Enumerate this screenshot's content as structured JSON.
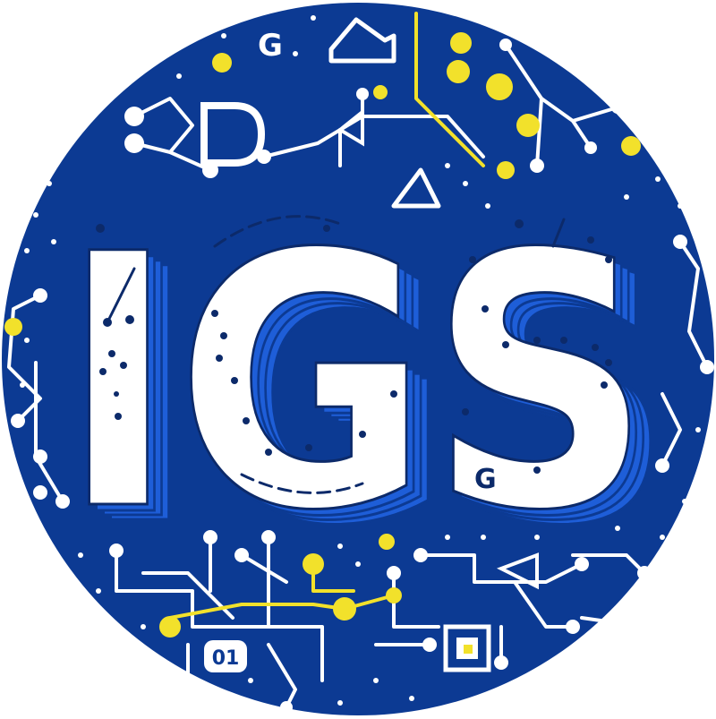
{
  "logo": {
    "wordmark": "IGS",
    "small_text_top": "G",
    "small_text_bottom": "G",
    "chip_label": "01"
  },
  "colors": {
    "background": "#ffffff",
    "circle": "#0c3a93",
    "accent_blue": "#1e5ed8",
    "letter_fill": "#ffffff",
    "letter_dot": "#0c2a6a",
    "circuit_line": "#ffffff",
    "yellow_node": "#f2e12b"
  },
  "icons": [
    "circuit-trace-icon",
    "yellow-node-icon",
    "microchip-icon",
    "triangle-icon",
    "house-icon"
  ]
}
